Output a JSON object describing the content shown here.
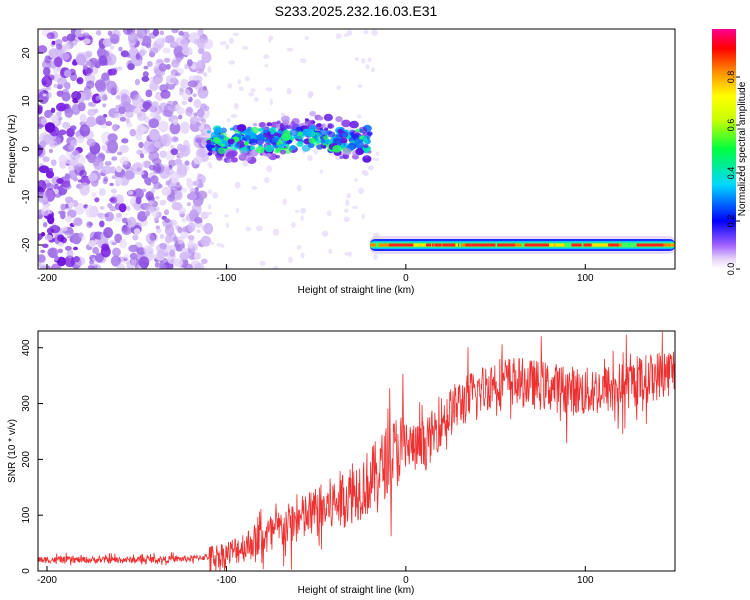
{
  "title": "S233.2025.232.16.03.E31",
  "chart_data": [
    {
      "type": "heatmap",
      "xlabel": "Height of straight line (km)",
      "ylabel": "Frequency (Hz)",
      "xlim": [
        -205,
        150
      ],
      "ylim": [
        -25,
        25
      ],
      "xticks": [
        -200,
        -100,
        0,
        100
      ],
      "yticks": [
        -20,
        -10,
        0,
        10,
        20
      ],
      "colorbar": {
        "label": "Normalized spectral amplitude",
        "range": [
          0,
          1
        ],
        "ticks": [
          0.0,
          0.2,
          0.4,
          0.6,
          0.8
        ],
        "tick_labels": [
          "0.0",
          "0.2",
          "0.4",
          "0.6",
          "0.8"
        ]
      },
      "features": [
        {
          "name": "noise",
          "x_range": [
            -205,
            -110
          ],
          "y_range": [
            -25,
            25
          ],
          "amplitude": 0.1
        },
        {
          "name": "meteor-head",
          "x_range": [
            -110,
            -20
          ],
          "y_center": 2,
          "amplitude": 0.25
        },
        {
          "name": "ground-echo",
          "x_range": [
            -20,
            150
          ],
          "y_center": -20,
          "amplitude": 0.95
        }
      ]
    },
    {
      "type": "line",
      "xlabel": "Height of straight line (km)",
      "ylabel": "SNR (10 * v/v)",
      "xlim": [
        -205,
        150
      ],
      "ylim": [
        0,
        430
      ],
      "xticks": [
        -200,
        -100,
        0,
        100
      ],
      "yticks": [
        0,
        100,
        200,
        300,
        400
      ],
      "series": [
        {
          "name": "SNR",
          "color": "#ee3030",
          "x": [
            -205,
            -180,
            -150,
            -120,
            -100,
            -80,
            -60,
            -40,
            -20,
            -10,
            0,
            5,
            10,
            20,
            30,
            40,
            50,
            60,
            80,
            100,
            120,
            150
          ],
          "y": [
            20,
            20,
            20,
            22,
            30,
            60,
            90,
            120,
            160,
            200,
            230,
            220,
            220,
            270,
            300,
            320,
            340,
            340,
            330,
            320,
            330,
            360
          ]
        }
      ]
    }
  ]
}
